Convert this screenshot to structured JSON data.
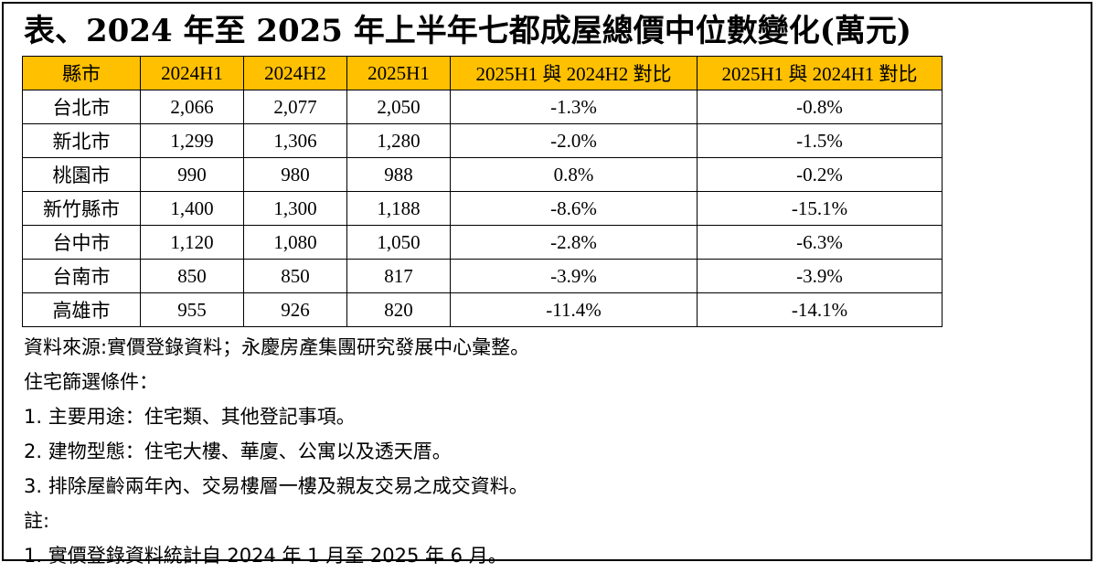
{
  "title": "表、2024 年至 2025 年上半年七都成屋總價中位數變化(萬元)",
  "table": {
    "headers": [
      "縣市",
      "2024H1",
      "2024H2",
      "2025H1",
      "2025H1 與 2024H2 對比",
      "2025H1 與 2024H1 對比"
    ],
    "header_color": "#ffc000",
    "rows": [
      [
        "台北市",
        "2,066",
        "2,077",
        "2,050",
        "-1.3%",
        "-0.8%"
      ],
      [
        "新北市",
        "1,299",
        "1,306",
        "1,280",
        "-2.0%",
        "-1.5%"
      ],
      [
        "桃園市",
        "990",
        "980",
        "988",
        "0.8%",
        "-0.2%"
      ],
      [
        "新竹縣市",
        "1,400",
        "1,300",
        "1,188",
        "-8.6%",
        "-15.1%"
      ],
      [
        "台中市",
        "1,120",
        "1,080",
        "1,050",
        "-2.8%",
        "-6.3%"
      ],
      [
        "台南市",
        "850",
        "850",
        "817",
        "-3.9%",
        "-3.9%"
      ],
      [
        "高雄市",
        "955",
        "926",
        "820",
        "-11.4%",
        "-14.1%"
      ]
    ]
  },
  "notes": [
    "資料來源:實價登錄資料；永慶房產集團研究發展中心彙整。",
    "住宅篩選條件：",
    "1. 主要用途：住宅類、其他登記事項。",
    "2. 建物型態：住宅大樓、華廈、公寓以及透天厝。",
    "3. 排除屋齡兩年內、交易樓層一樓及親友交易之成交資料。",
    "註:",
    "1. 實價登錄資料統計自 2024 年 1 月至 2025 年 6 月。"
  ]
}
